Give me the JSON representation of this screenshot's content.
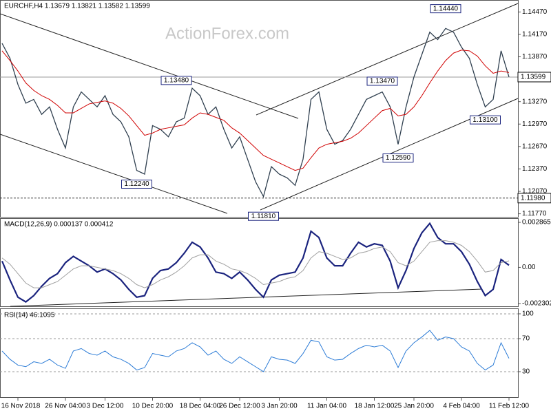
{
  "chart_data": {
    "type": "line",
    "title": "EURCHF,H4  1.13679 1.13821 1.13582 1.13599",
    "watermark": "ActionForex.com",
    "xlim": [
      0,
      64
    ],
    "xticks": [
      {
        "value": 2,
        "label": "16 Nov 2018"
      },
      {
        "value": 8,
        "label": "26 Nov 04:00"
      },
      {
        "value": 13,
        "label": "3 Dec 12:00"
      },
      {
        "value": 19,
        "label": "10 Dec 20:00"
      },
      {
        "value": 25,
        "label": "18 Dec 04:00"
      },
      {
        "value": 30,
        "label": "26 Dec 12:00"
      },
      {
        "value": 35,
        "label": "3 Jan 20:00"
      },
      {
        "value": 41,
        "label": "11 Jan 04:00"
      },
      {
        "value": 47,
        "label": "18 Jan 12:00"
      },
      {
        "value": 52,
        "label": "25 Jan 20:00"
      },
      {
        "value": 58,
        "label": "4 Feb 04:00"
      },
      {
        "value": 64,
        "label": "11 Feb 12:00"
      }
    ],
    "ylim": [
      1.1172,
      1.1463
    ],
    "yticks": [
      {
        "value": 1.1447,
        "label": "1.14470"
      },
      {
        "value": 1.1417,
        "label": "1.14170"
      },
      {
        "value": 1.1387,
        "label": "1.13870"
      },
      {
        "value": 1.1327,
        "label": "1.13270"
      },
      {
        "value": 1.1297,
        "label": "1.12970"
      },
      {
        "value": 1.1267,
        "label": "1.12670"
      },
      {
        "value": 1.1237,
        "label": "1.12370"
      },
      {
        "value": 1.1207,
        "label": "1.12070"
      },
      {
        "value": 1.1177,
        "label": "1.11770"
      }
    ],
    "series": [
      {
        "name": "EURCHF",
        "color": "#2f3f4f",
        "values": [
          1.1405,
          1.1385,
          1.135,
          1.1325,
          1.133,
          1.131,
          1.132,
          1.129,
          1.1265,
          1.132,
          1.134,
          1.133,
          1.132,
          1.1335,
          1.131,
          1.13,
          1.128,
          1.1235,
          1.123,
          1.1295,
          1.129,
          1.128,
          1.13,
          1.1305,
          1.1345,
          1.1335,
          1.131,
          1.132,
          1.129,
          1.1265,
          1.128,
          1.125,
          1.122,
          1.12,
          1.124,
          1.123,
          1.1225,
          1.1215,
          1.125,
          1.133,
          1.134,
          1.129,
          1.127,
          1.1275,
          1.129,
          1.131,
          1.133,
          1.1335,
          1.134,
          1.132,
          1.127,
          1.132,
          1.136,
          1.139,
          1.142,
          1.141,
          1.1425,
          1.142,
          1.14,
          1.1385,
          1.135,
          1.132,
          1.133,
          1.1395,
          1.136
        ]
      },
      {
        "name": "MA",
        "color": "#d00000",
        "values": [
          1.1395,
          1.1382,
          1.1368,
          1.1352,
          1.1342,
          1.1335,
          1.133,
          1.1322,
          1.1312,
          1.1312,
          1.1318,
          1.1324,
          1.1326,
          1.1328,
          1.1325,
          1.1318,
          1.1308,
          1.1295,
          1.1282,
          1.1285,
          1.129,
          1.1292,
          1.1294,
          1.1296,
          1.1305,
          1.1312,
          1.131,
          1.1306,
          1.1302,
          1.1292,
          1.1285,
          1.1275,
          1.1265,
          1.1255,
          1.125,
          1.1245,
          1.124,
          1.1235,
          1.1238,
          1.1252,
          1.1265,
          1.127,
          1.1272,
          1.1274,
          1.1278,
          1.1285,
          1.1295,
          1.1305,
          1.1315,
          1.1318,
          1.1308,
          1.131,
          1.132,
          1.1335,
          1.1352,
          1.1368,
          1.1382,
          1.1392,
          1.1396,
          1.1395,
          1.1388,
          1.1375,
          1.1365,
          1.1368,
          1.1366
        ]
      }
    ],
    "hlines": [
      {
        "value": 1.13599,
        "label": "1.13599",
        "style": "solid"
      },
      {
        "value": 1.1198,
        "label": "1.11980",
        "style": "dotted"
      }
    ],
    "annotations": [
      {
        "text": "1.13480",
        "value": 1.1348,
        "x": 22
      },
      {
        "text": "1.12240",
        "value": 1.1224,
        "x": 17
      },
      {
        "text": "1.11810",
        "value": 1.1181,
        "x": 33
      },
      {
        "text": "1.13470",
        "value": 1.1347,
        "x": 48
      },
      {
        "text": "1.12590",
        "value": 1.1259,
        "x": 50
      },
      {
        "text": "1.14440",
        "value": 1.1444,
        "x": 56
      },
      {
        "text": "1.13100",
        "value": 1.131,
        "x": 61
      }
    ],
    "macd": {
      "title": "MACD(12,26,9) 0.000137 0.000412",
      "ylim": [
        -0.002523,
        0.003086
      ],
      "yticks": [
        0.002865,
        {
          "value": 0,
          "label": "0.00"
        },
        -0.002302
      ],
      "series": [
        {
          "name": "MACD",
          "color": "#1a237e",
          "values": [
            0.0004,
            -0.0008,
            -0.0019,
            -0.0022,
            -0.0018,
            -0.0012,
            -0.0007,
            -0.0004,
            0.0003,
            0.0007,
            0.0004,
            0.0001,
            -0.0003,
            -0.0001,
            -0.0004,
            -0.0008,
            -0.0014,
            -0.0019,
            -0.0018,
            -0.0007,
            -0.0002,
            -0.0001,
            0.0003,
            0.0009,
            0.0016,
            0.0013,
            0.0006,
            -0.0003,
            -0.0004,
            -0.0007,
            -0.0003,
            -0.0008,
            -0.0014,
            -0.0019,
            -0.0008,
            -0.0005,
            -0.0004,
            -0.0003,
            0.0006,
            0.0023,
            0.0019,
            0.0006,
            0.0001,
            0.0001,
            0.0009,
            0.0016,
            0.0013,
            0.0015,
            0.0014,
            0.0004,
            -0.0013,
            -0.0002,
            0.0012,
            0.0022,
            0.0028,
            0.0019,
            0.0015,
            0.0015,
            0.001,
            0.0002,
            -0.0009,
            -0.0018,
            -0.0014,
            0.0005,
            0.000137
          ]
        },
        {
          "name": "Signal",
          "color": "#a0a0a0",
          "values": [
            0.0006,
            0.0002,
            -0.0004,
            -0.001,
            -0.0013,
            -0.0013,
            -0.0011,
            -0.0009,
            -0.0005,
            -0.0001,
            0.0001,
            0.0001,
            0,
            -0.0001,
            -0.0002,
            -0.0004,
            -0.0007,
            -0.0011,
            -0.0013,
            -0.0011,
            -0.0008,
            -0.0006,
            -0.0003,
            0.0001,
            0.0006,
            0.0008,
            0.0008,
            0.0004,
            0.0002,
            -0.0001,
            -0.0002,
            -0.0004,
            -0.0007,
            -0.0011,
            -0.001,
            -0.0009,
            -0.0007,
            -0.0006,
            -0.0002,
            0.0006,
            0.001,
            0.0009,
            0.0007,
            0.0005,
            0.0006,
            0.0009,
            0.001,
            0.0012,
            0.0013,
            0.001,
            0.0003,
            0.0001,
            0.0004,
            0.001,
            0.0016,
            0.0017,
            0.0017,
            0.0016,
            0.0014,
            0.001,
            0.0004,
            -0.0003,
            -0.0002,
            0.0003,
            0.000412
          ]
        }
      ]
    },
    "rsi": {
      "title": "RSI(14) 46.1095",
      "ylim": [
        -1.7,
        105.8
      ],
      "yticks": [
        30,
        70,
        100
      ],
      "color": "#2b7bd6",
      "values": [
        55,
        45,
        38,
        36,
        42,
        40,
        45,
        38,
        34,
        55,
        58,
        52,
        50,
        55,
        48,
        45,
        40,
        32,
        35,
        52,
        50,
        48,
        55,
        58,
        65,
        60,
        50,
        55,
        45,
        40,
        48,
        42,
        36,
        30,
        48,
        45,
        44,
        40,
        52,
        68,
        66,
        48,
        44,
        45,
        52,
        58,
        62,
        60,
        62,
        55,
        35,
        55,
        65,
        72,
        80,
        68,
        72,
        70,
        60,
        55,
        40,
        32,
        38,
        65,
        46.1095
      ]
    }
  }
}
